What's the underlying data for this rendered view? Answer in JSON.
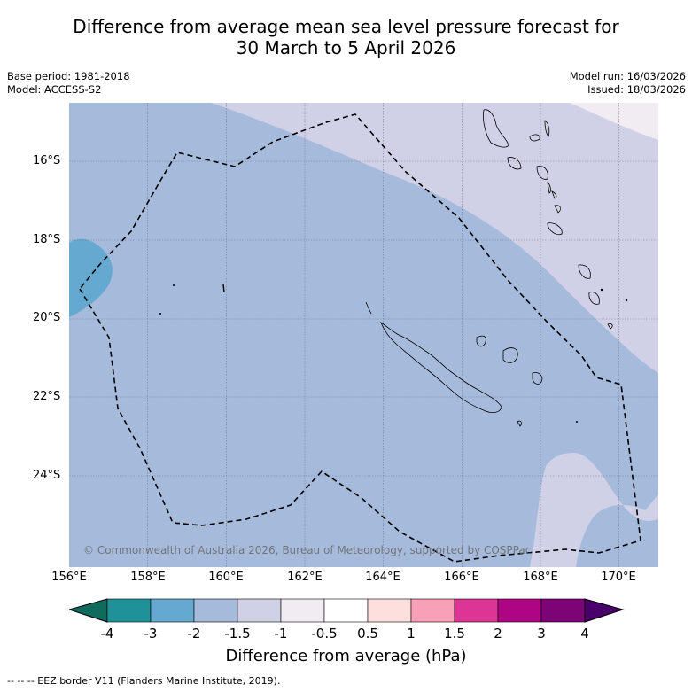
{
  "title": {
    "line1": "Difference from average mean sea level pressure forecast for",
    "line2": "30 March to 5 April 2026"
  },
  "meta": {
    "base_period": "Base period: 1981-2018",
    "model": "Model: ACCESS-S2",
    "model_run": "Model run: 16/03/2026",
    "issued": "Issued: 18/03/2026"
  },
  "axes": {
    "lat_labels": [
      "16°S",
      "18°S",
      "20°S",
      "22°S",
      "24°S"
    ],
    "lon_labels": [
      "156°E",
      "158°E",
      "160°E",
      "162°E",
      "164°E",
      "166°E",
      "168°E",
      "170°E"
    ]
  },
  "credit": "© Commonwealth of Australia 2026, Bureau of Meteorology, supported by COSPPac",
  "colorbar": {
    "labels": [
      "-4",
      "-3",
      "-2",
      "-1.5",
      "-1",
      "-0.5",
      "0.5",
      "1",
      "1.5",
      "2",
      "3",
      "4"
    ],
    "colors": [
      "#0f6b5c",
      "#1f9198",
      "#66a9d0",
      "#a6badb",
      "#d0d0e6",
      "#f0ecf2",
      "#ffffff",
      "#fde0de",
      "#f8a0b8",
      "#dc3596",
      "#ad0584",
      "#7c0477",
      "#4a006a"
    ],
    "title": "Difference from average (hPa)"
  },
  "footer": "-- -- -- EEZ border V11 (Flanders Marine Institute, 2019).",
  "colors": {
    "fill_m2_m15": "#a6badb",
    "fill_m15_m1": "#d0d0e6",
    "fill_m1_m05": "#f0ecf2",
    "fill_m3_m2": "#66a9d0"
  }
}
